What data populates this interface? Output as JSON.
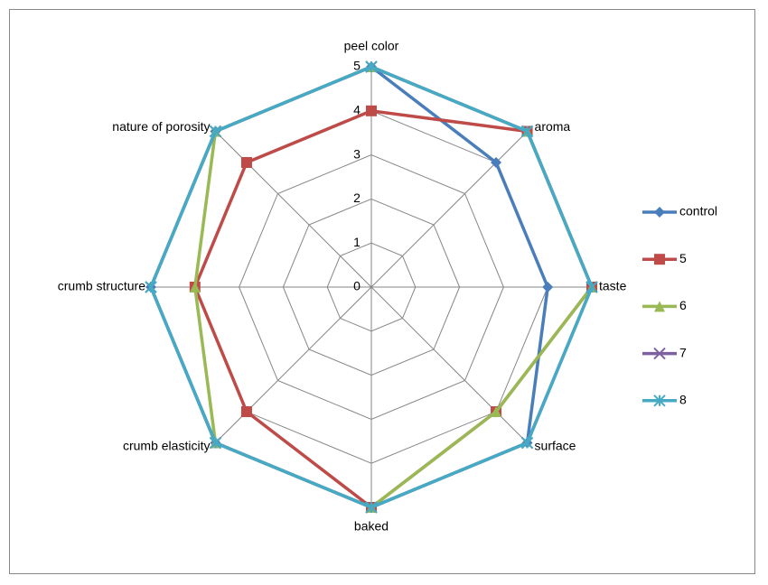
{
  "chart_data": {
    "type": "radar",
    "categories": [
      "peel color",
      "aroma",
      "taste",
      "surface",
      "baked",
      "crumb elasticity",
      "crumb structure",
      "nature of porosity"
    ],
    "series": [
      {
        "name": "control",
        "color": "#4a7ebb",
        "marker": "diamond",
        "values": [
          5,
          4,
          4,
          5,
          5,
          5,
          5,
          5
        ]
      },
      {
        "name": "5",
        "color": "#be4b48",
        "marker": "square",
        "values": [
          4,
          5,
          5,
          4,
          5,
          4,
          4,
          4
        ]
      },
      {
        "name": "6",
        "color": "#98b954",
        "marker": "triangle",
        "values": [
          5,
          5,
          5,
          4,
          5,
          5,
          4,
          5
        ]
      },
      {
        "name": "7",
        "color": "#7d60a0",
        "marker": "x",
        "values": [
          5,
          5,
          5,
          5,
          5,
          5,
          5,
          5
        ]
      },
      {
        "name": "8",
        "color": "#46aac5",
        "marker": "star",
        "values": [
          5,
          5,
          5,
          5,
          5,
          5,
          5,
          5
        ]
      }
    ],
    "ylim": [
      0,
      5
    ],
    "yticks": [
      0,
      1,
      2,
      3,
      4,
      5
    ],
    "grid": true,
    "legend": "right"
  }
}
